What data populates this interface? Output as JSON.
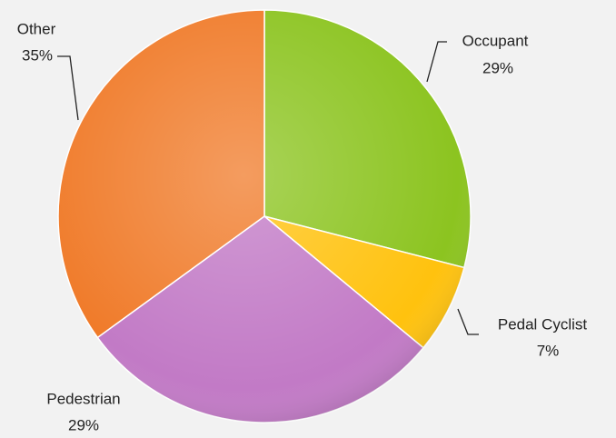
{
  "chart_data": {
    "type": "pie",
    "categories": [
      "Occupant",
      "Pedal Cyclist",
      "Pedestrian",
      "Other"
    ],
    "values": [
      29,
      7,
      29,
      35
    ],
    "value_labels": [
      "29%",
      "7%",
      "29%",
      "35%"
    ],
    "colors": [
      "#8cc420",
      "#ffc20e",
      "#c27ac6",
      "#f07b2a"
    ]
  }
}
